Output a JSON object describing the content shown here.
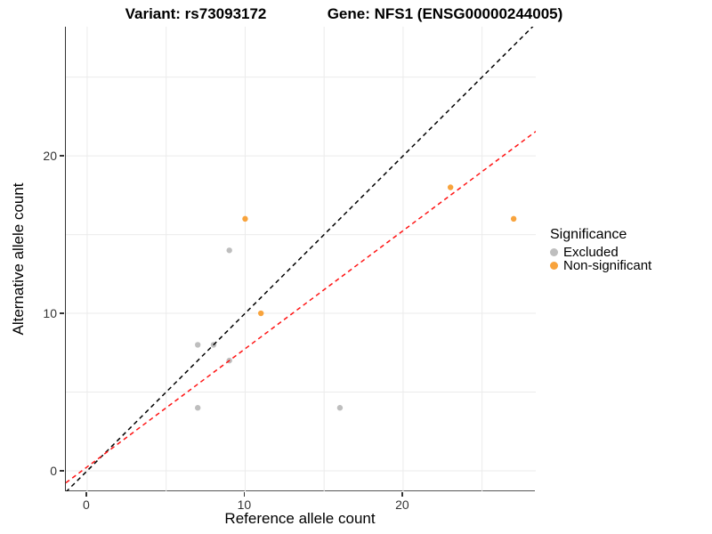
{
  "title": {
    "variant": "Variant: rs73093172",
    "gene": "Gene: NFS1 (ENSG00000244005)"
  },
  "axes": {
    "x": {
      "label": "Reference allele count",
      "ticks": [
        0,
        10,
        20
      ],
      "tick_labels": [
        "0",
        "10",
        "20"
      ],
      "gridlines": [
        0,
        5,
        10,
        15,
        20,
        25
      ],
      "range": [
        -1.35,
        28.4
      ]
    },
    "y": {
      "label": "Alternative allele count",
      "ticks": [
        0,
        10,
        20
      ],
      "tick_labels": [
        "0",
        "10",
        "20"
      ],
      "gridlines": [
        0,
        5,
        10,
        15,
        20,
        25
      ],
      "range": [
        -1.3,
        28.2
      ]
    }
  },
  "legend": {
    "title": "Significance",
    "items": [
      {
        "label": "Excluded",
        "color": "#BEBEBE"
      },
      {
        "label": "Non-significant",
        "color": "#F8A33C"
      }
    ]
  },
  "colors": {
    "gridline": "#EBEBEB",
    "axis_line": "#333333",
    "identity_line": "#000000",
    "fit_line": "#FF1414",
    "excluded_point": "#BEBEBE",
    "non_significant_point": "#F8A33C"
  },
  "chart_data": {
    "type": "scatter",
    "title": "Variant: rs73093172 — Gene: NFS1 (ENSG00000244005)",
    "xlabel": "Reference allele count",
    "ylabel": "Alternative allele count",
    "xlim": [
      -1.35,
      28.4
    ],
    "ylim": [
      -1.3,
      28.2
    ],
    "grid": "on",
    "legend_position": "right",
    "series": [
      {
        "name": "Excluded",
        "color": "#BEBEBE",
        "points": [
          [
            7,
            8
          ],
          [
            8,
            8
          ],
          [
            9,
            7
          ],
          [
            9,
            14
          ],
          [
            7,
            4
          ],
          [
            16,
            4
          ]
        ]
      },
      {
        "name": "Non-significant",
        "color": "#F8A33C",
        "points": [
          [
            10,
            16
          ],
          [
            11,
            10
          ],
          [
            23,
            18
          ],
          [
            27,
            16
          ]
        ]
      }
    ],
    "lines": [
      {
        "name": "identity",
        "color": "#000000",
        "style": "dashed",
        "slope": 1,
        "intercept": 0
      },
      {
        "name": "fit",
        "color": "#FF1414",
        "style": "dashed",
        "slope": 0.75,
        "intercept": 0.25
      }
    ]
  }
}
